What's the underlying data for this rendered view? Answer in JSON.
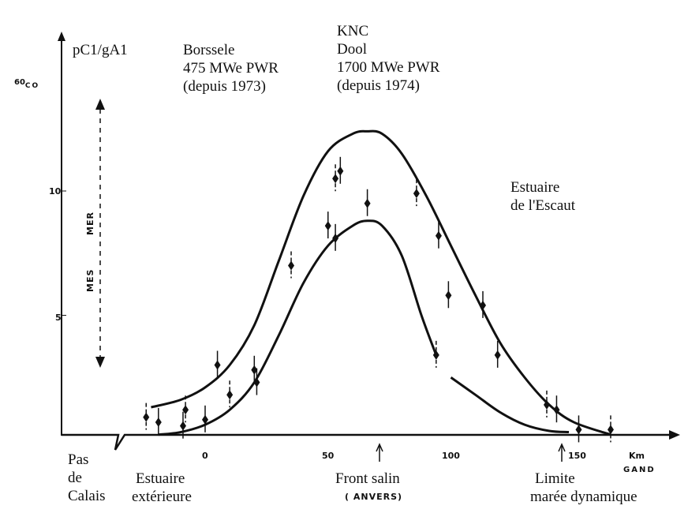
{
  "chart_data": {
    "type": "scatter",
    "title": "",
    "ylabel": "pC1/gA1",
    "isotope_label": "60CO",
    "isotope_mass": "60",
    "isotope_symbol": "CO",
    "xlabel": "Km",
    "xlim": [
      -60,
      190
    ],
    "ylim": [
      0,
      14
    ],
    "x_ticks": [
      {
        "value": 0,
        "label": "0"
      },
      {
        "value": 50,
        "label": "50"
      },
      {
        "value": 100,
        "label": "100"
      },
      {
        "value": 150,
        "label": "150"
      }
    ],
    "y_ticks": [
      {
        "value": 5,
        "label": "5"
      },
      {
        "value": 10,
        "label": "10"
      }
    ],
    "vertical_range_labels": [
      "MES",
      "MER"
    ],
    "annotations": {
      "borssele": [
        "Borssele",
        "475 MWe PWR",
        "(depuis 1973)"
      ],
      "knc": [
        "KNC",
        "Dool",
        "1700 MWe PWR",
        "(depuis 1974)"
      ],
      "estuaire": [
        "Estuaire",
        "de l'Escaut"
      ],
      "pas_de_calais": [
        "Pas",
        "de",
        "Calais"
      ],
      "estuaire_ext": [
        "Estuaire",
        "extérieure"
      ],
      "front_salin": [
        "Front salin",
        "( ANVERS)"
      ],
      "limite": [
        "Limite",
        "marée dynamique"
      ],
      "gand": "GAND"
    },
    "points": [
      {
        "x": -24,
        "y": 0.9
      },
      {
        "x": -19,
        "y": 0.7
      },
      {
        "x": -9,
        "y": 0.55
      },
      {
        "x": -8,
        "y": 1.2
      },
      {
        "x": 0,
        "y": 0.8
      },
      {
        "x": 5,
        "y": 3.0
      },
      {
        "x": 10,
        "y": 1.8
      },
      {
        "x": 20,
        "y": 2.8
      },
      {
        "x": 21,
        "y": 2.3
      },
      {
        "x": 35,
        "y": 7.0
      },
      {
        "x": 50,
        "y": 8.6
      },
      {
        "x": 53,
        "y": 8.1
      },
      {
        "x": 53,
        "y": 10.5
      },
      {
        "x": 55,
        "y": 10.8
      },
      {
        "x": 66,
        "y": 9.5
      },
      {
        "x": 86,
        "y": 9.9
      },
      {
        "x": 95,
        "y": 8.2
      },
      {
        "x": 99,
        "y": 5.8
      },
      {
        "x": 94,
        "y": 3.4
      },
      {
        "x": 113,
        "y": 5.4
      },
      {
        "x": 119,
        "y": 3.4
      },
      {
        "x": 139,
        "y": 1.4
      },
      {
        "x": 143,
        "y": 1.2
      },
      {
        "x": 152,
        "y": 0.4
      },
      {
        "x": 165,
        "y": 0.4
      }
    ],
    "series": [
      {
        "name": "upper envelope",
        "x": [
          -22,
          -10,
          0,
          10,
          20,
          30,
          40,
          50,
          60,
          66,
          72,
          80,
          90,
          100,
          110,
          120,
          130,
          140,
          150,
          165
        ],
        "y": [
          1.3,
          1.6,
          2.1,
          3.0,
          4.6,
          7.2,
          9.8,
          11.6,
          12.3,
          12.4,
          12.3,
          11.5,
          9.8,
          7.8,
          5.8,
          3.9,
          2.5,
          1.4,
          0.7,
          0.2
        ]
      },
      {
        "name": "lower envelope",
        "x": [
          -19,
          -10,
          0,
          10,
          20,
          30,
          40,
          50,
          60,
          66,
          72,
          80,
          88,
          94
        ],
        "y": [
          0.2,
          0.3,
          0.6,
          1.2,
          2.3,
          4.2,
          6.3,
          7.8,
          8.6,
          8.8,
          8.6,
          7.4,
          5.0,
          3.4
        ]
      },
      {
        "name": "lower envelope tail",
        "x": [
          100,
          110,
          120,
          130,
          140,
          148
        ],
        "y": [
          2.5,
          1.8,
          1.1,
          0.6,
          0.35,
          0.3
        ]
      }
    ]
  }
}
